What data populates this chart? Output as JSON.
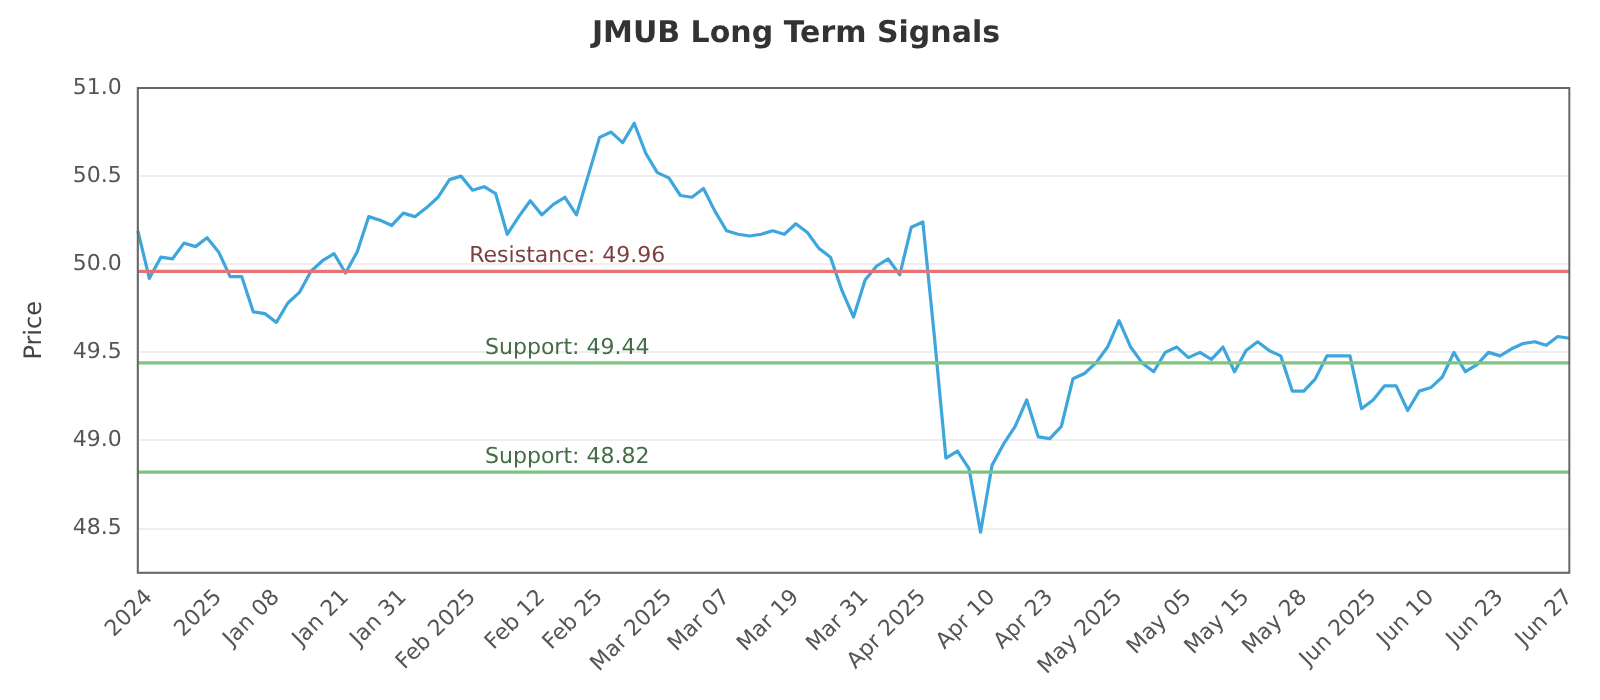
{
  "chart_data": {
    "type": "line",
    "title": "JMUB Long Term Signals",
    "ylabel": "Price",
    "categories": [
      null,
      "2024",
      null,
      null,
      null,
      null,
      null,
      "2025",
      null,
      null,
      null,
      null,
      "Jan 08",
      null,
      null,
      null,
      null,
      null,
      "Jan 21",
      null,
      null,
      null,
      null,
      "Jan 31",
      null,
      null,
      null,
      null,
      null,
      "Feb 2025",
      null,
      null,
      null,
      null,
      null,
      "Feb 12",
      null,
      null,
      null,
      null,
      "Feb 25",
      null,
      null,
      null,
      null,
      null,
      "Mar 2025",
      null,
      null,
      null,
      null,
      "Mar 07",
      null,
      null,
      null,
      null,
      null,
      "Mar 19",
      null,
      null,
      null,
      null,
      null,
      "Mar 31",
      null,
      null,
      null,
      null,
      "Apr 2025",
      null,
      null,
      null,
      null,
      null,
      "Apr 10",
      null,
      null,
      null,
      null,
      "Apr 23",
      null,
      null,
      null,
      null,
      null,
      "May 2025",
      null,
      null,
      null,
      null,
      null,
      "May 05",
      null,
      null,
      null,
      null,
      "May 15",
      null,
      null,
      null,
      null,
      "May 28",
      null,
      null,
      null,
      null,
      null,
      "Jun 2025",
      null,
      null,
      null,
      null,
      "Jun 10",
      null,
      null,
      null,
      null,
      null,
      "Jun 23",
      null,
      null,
      null,
      null,
      null,
      "Jun 27"
    ],
    "series": [
      {
        "color": "#3ea6dc",
        "values": [
          50.19,
          49.92,
          50.04,
          50.03,
          50.12,
          50.1,
          50.15,
          50.07,
          49.93,
          49.93,
          49.73,
          49.72,
          49.67,
          49.78,
          49.84,
          49.96,
          50.02,
          50.06,
          49.95,
          50.07,
          50.27,
          50.25,
          50.22,
          50.29,
          50.27,
          50.32,
          50.38,
          50.48,
          50.5,
          50.42,
          50.44,
          50.4,
          50.17,
          50.27,
          50.36,
          50.28,
          50.34,
          50.38,
          50.28,
          50.5,
          50.72,
          50.75,
          50.69,
          50.8,
          50.63,
          50.52,
          50.49,
          50.39,
          50.38,
          50.43,
          50.3,
          50.19,
          50.17,
          50.16,
          50.17,
          50.19,
          50.17,
          50.23,
          50.18,
          50.09,
          50.04,
          49.85,
          49.7,
          49.91,
          49.99,
          50.03,
          49.94,
          50.21,
          50.24,
          49.59,
          48.9,
          48.94,
          48.84,
          48.48,
          48.86,
          48.98,
          49.08,
          49.23,
          49.02,
          49.01,
          49.08,
          49.35,
          49.38,
          49.44,
          49.53,
          49.68,
          49.53,
          49.44,
          49.39,
          49.5,
          49.53,
          49.47,
          49.5,
          49.46,
          49.53,
          49.39,
          49.51,
          49.56,
          49.51,
          49.48,
          49.28,
          49.28,
          49.35,
          49.48,
          49.48,
          49.48,
          49.18,
          49.23,
          49.31,
          49.31,
          49.17,
          49.28,
          49.3,
          49.36,
          49.5,
          49.39,
          49.43,
          49.5,
          49.48,
          49.52,
          49.55,
          49.56,
          49.54,
          49.59,
          49.58
        ]
      }
    ],
    "ylim": [
      48.25,
      51.0
    ],
    "yticks": [
      48.5,
      {
        "value": 49,
        "label": "49.0"
      },
      49.5,
      {
        "value": 50,
        "label": "50.0"
      },
      50.5,
      {
        "value": 51,
        "label": "51.0"
      }
    ],
    "ref_lines": [
      {
        "axis": "y",
        "value": 49.96,
        "label": "Resistance: 49.96",
        "color": "#e57373"
      },
      {
        "axis": "y",
        "value": 49.44,
        "label": "Support: 49.44",
        "color": "#7cc47f"
      },
      {
        "axis": "y",
        "value": 48.82,
        "label": "Support: 48.82",
        "color": "#7cc47f"
      }
    ],
    "grid": "y",
    "legend": false,
    "marker": "none",
    "line_style": "solid"
  }
}
